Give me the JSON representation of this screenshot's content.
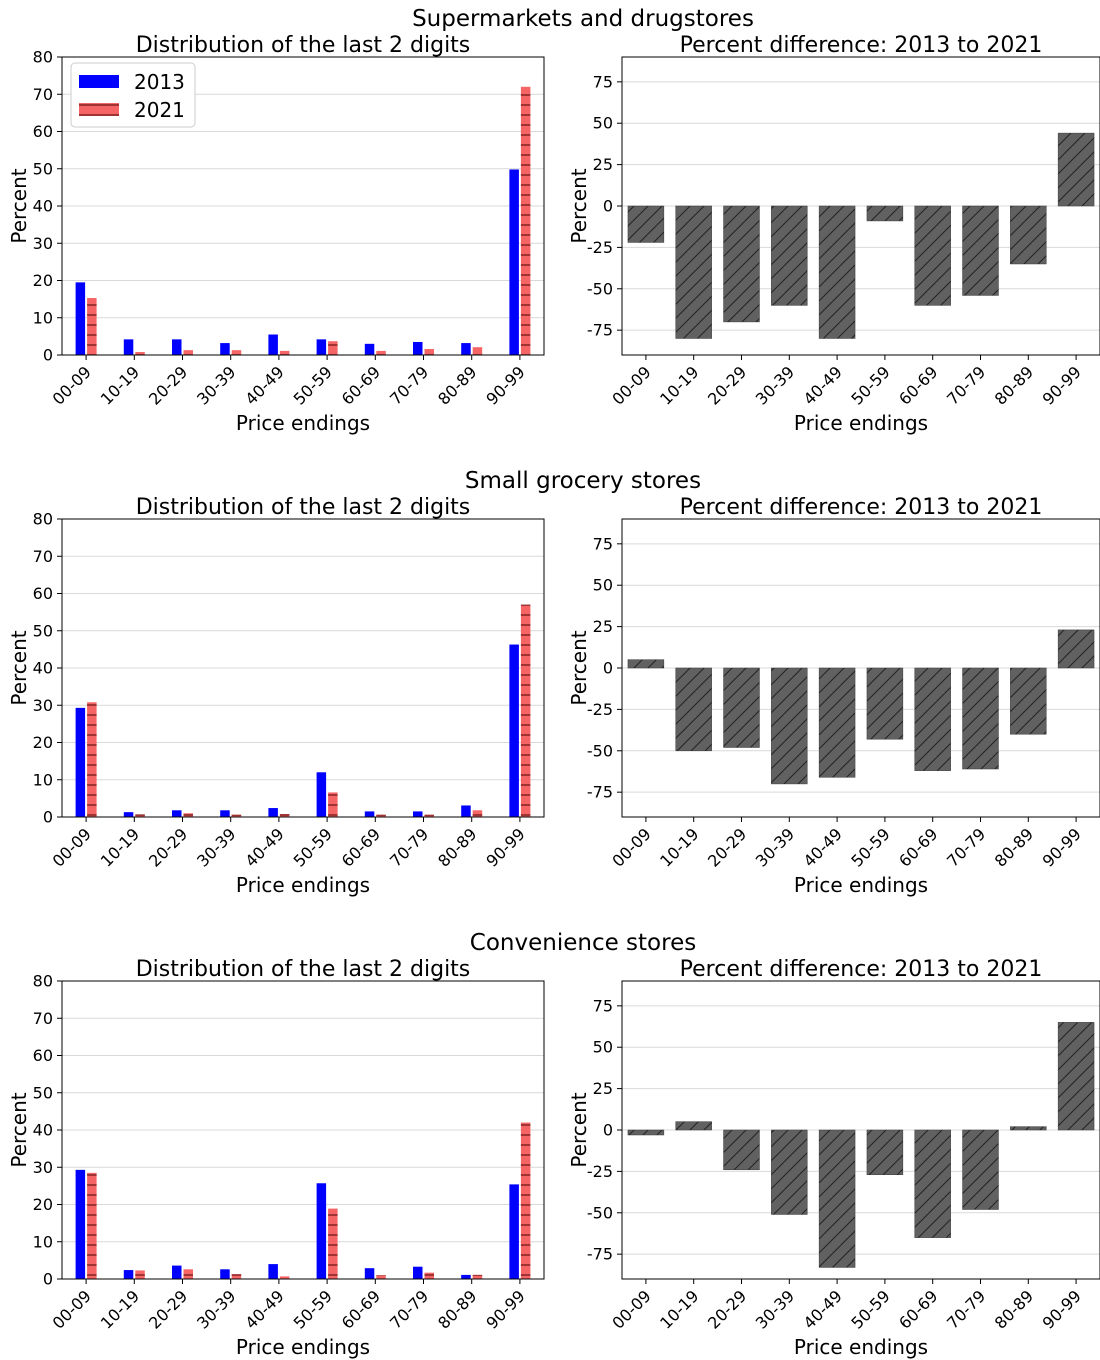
{
  "rows": [
    {
      "suptitle": "Supermarkets and drugstores",
      "left_title": "Distribution of the last 2 digits",
      "right_title": "Percent difference: 2013 to 2021"
    },
    {
      "suptitle": "Small grocery stores",
      "left_title": "Distribution of the last 2 digits",
      "right_title": "Percent difference: 2013 to 2021"
    },
    {
      "suptitle": "Convenience stores",
      "left_title": "Distribution of the last 2 digits",
      "right_title": "Percent difference: 2013 to 2021"
    }
  ],
  "legend": [
    "2013",
    "2021"
  ],
  "colors": {
    "s2013": "#0000ff",
    "s2021": "#f56565",
    "s2021_hatch": "#7a1f1f",
    "diff": "#616161",
    "diff_hatch": "#222222"
  },
  "chart_data": [
    {
      "type": "bar",
      "title": "Distribution of the last 2 digits",
      "xlabel": "Price endings",
      "ylabel": "Percent",
      "ylim": [
        0,
        80
      ],
      "yticks": [
        0,
        10,
        20,
        30,
        40,
        50,
        60,
        70,
        80
      ],
      "categories": [
        "00-09",
        "10-19",
        "20-29",
        "30-39",
        "40-49",
        "50-59",
        "60-69",
        "70-79",
        "80-89",
        "90-99"
      ],
      "series": [
        {
          "name": "2013",
          "values": [
            19.5,
            4.2,
            4.2,
            3.2,
            5.5,
            4.2,
            3.0,
            3.5,
            3.2,
            49.8
          ]
        },
        {
          "name": "2021",
          "values": [
            15.3,
            0.8,
            1.3,
            1.3,
            1.1,
            3.7,
            1.1,
            1.6,
            2.1,
            72.0
          ]
        }
      ],
      "legend": "top-left",
      "grid": true
    },
    {
      "type": "bar",
      "title": "Percent difference: 2013 to 2021",
      "xlabel": "Price endings",
      "ylabel": "Percent",
      "ylim": [
        -90,
        90
      ],
      "yticks": [
        -75,
        -50,
        -25,
        0,
        25,
        50,
        75
      ],
      "categories": [
        "00-09",
        "10-19",
        "20-29",
        "30-39",
        "40-49",
        "50-59",
        "60-69",
        "70-79",
        "80-89",
        "90-99"
      ],
      "values": [
        -22,
        -80,
        -70,
        -60,
        -80,
        -9,
        -60,
        -54,
        -35,
        44
      ],
      "grid": true
    },
    {
      "type": "bar",
      "title": "Distribution of the last 2 digits",
      "xlabel": "Price endings",
      "ylabel": "Percent",
      "ylim": [
        0,
        80
      ],
      "yticks": [
        0,
        10,
        20,
        30,
        40,
        50,
        60,
        70,
        80
      ],
      "categories": [
        "00-09",
        "10-19",
        "20-29",
        "30-39",
        "40-49",
        "50-59",
        "60-69",
        "70-79",
        "80-89",
        "90-99"
      ],
      "series": [
        {
          "name": "2013",
          "values": [
            29.3,
            1.3,
            1.8,
            1.8,
            2.4,
            12.0,
            1.5,
            1.5,
            3.1,
            46.3
          ]
        },
        {
          "name": "2021",
          "values": [
            30.8,
            0.7,
            1.0,
            0.6,
            0.8,
            6.6,
            0.6,
            0.6,
            1.8,
            57.0
          ]
        }
      ],
      "grid": true
    },
    {
      "type": "bar",
      "title": "Percent difference: 2013 to 2021",
      "xlabel": "Price endings",
      "ylabel": "Percent",
      "ylim": [
        -90,
        90
      ],
      "yticks": [
        -75,
        -50,
        -25,
        0,
        25,
        50,
        75
      ],
      "categories": [
        "00-09",
        "10-19",
        "20-29",
        "30-39",
        "40-49",
        "50-59",
        "60-69",
        "70-79",
        "80-89",
        "90-99"
      ],
      "values": [
        5,
        -50,
        -48,
        -70,
        -66,
        -43,
        -62,
        -61,
        -40,
        23
      ],
      "grid": true
    },
    {
      "type": "bar",
      "title": "Distribution of the last 2 digits",
      "xlabel": "Price endings",
      "ylabel": "Percent",
      "ylim": [
        0,
        80
      ],
      "yticks": [
        0,
        10,
        20,
        30,
        40,
        50,
        60,
        70,
        80
      ],
      "categories": [
        "00-09",
        "10-19",
        "20-29",
        "30-39",
        "40-49",
        "50-59",
        "60-69",
        "70-79",
        "80-89",
        "90-99"
      ],
      "series": [
        {
          "name": "2013",
          "values": [
            29.3,
            2.4,
            3.6,
            2.6,
            4.0,
            25.7,
            2.9,
            3.3,
            1.1,
            25.4
          ]
        },
        {
          "name": "2021",
          "values": [
            28.5,
            2.3,
            2.6,
            1.3,
            0.7,
            18.9,
            1.0,
            1.7,
            1.1,
            42.0
          ]
        }
      ],
      "grid": true
    },
    {
      "type": "bar",
      "title": "Percent difference: 2013 to 2021",
      "xlabel": "Price endings",
      "ylabel": "Percent",
      "ylim": [
        -90,
        90
      ],
      "yticks": [
        -75,
        -50,
        -25,
        0,
        25,
        50,
        75
      ],
      "categories": [
        "00-09",
        "10-19",
        "20-29",
        "30-39",
        "40-49",
        "50-59",
        "60-69",
        "70-79",
        "80-89",
        "90-99"
      ],
      "values": [
        -3,
        5,
        -24,
        -51,
        -83,
        -27,
        -65,
        -48,
        2,
        65
      ],
      "grid": true
    }
  ]
}
